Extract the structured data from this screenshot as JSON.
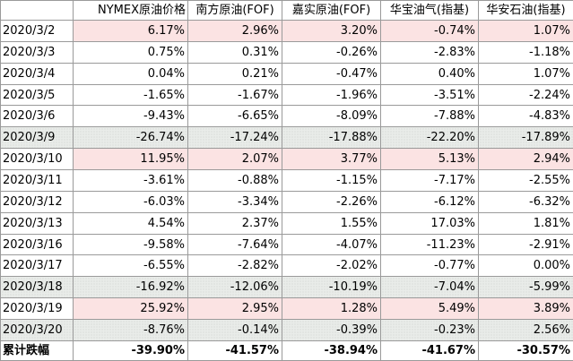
{
  "header": {
    "corner": "",
    "columns": [
      "NYMEX原油价格",
      "南方原油(FOF)",
      "嘉实原油(FOF)",
      "华宝油气(指基)",
      "华安石油(指基)"
    ]
  },
  "rows": [
    {
      "date": "2020/3/2",
      "highlight": "red",
      "values": [
        "6.17%",
        "2.96%",
        "3.20%",
        "-0.74%",
        "1.07%"
      ]
    },
    {
      "date": "2020/3/3",
      "highlight": "none",
      "values": [
        "0.75%",
        "0.31%",
        "-0.26%",
        "-2.83%",
        "-1.18%"
      ]
    },
    {
      "date": "2020/3/4",
      "highlight": "none",
      "values": [
        "0.04%",
        "0.21%",
        "-0.47%",
        "0.40%",
        "1.07%"
      ]
    },
    {
      "date": "2020/3/5",
      "highlight": "none",
      "values": [
        "-1.65%",
        "-1.67%",
        "-1.96%",
        "-3.51%",
        "-2.24%"
      ]
    },
    {
      "date": "2020/3/6",
      "highlight": "none",
      "values": [
        "-9.43%",
        "-6.65%",
        "-8.09%",
        "-7.88%",
        "-4.83%"
      ]
    },
    {
      "date": "2020/3/9",
      "highlight": "gray",
      "values": [
        "-26.74%",
        "-17.24%",
        "-17.88%",
        "-22.20%",
        "-17.89%"
      ]
    },
    {
      "date": "2020/3/10",
      "highlight": "red",
      "values": [
        "11.95%",
        "2.07%",
        "3.77%",
        "5.13%",
        "2.94%"
      ]
    },
    {
      "date": "2020/3/11",
      "highlight": "none",
      "values": [
        "-3.61%",
        "-0.88%",
        "-1.15%",
        "-7.17%",
        "-2.55%"
      ]
    },
    {
      "date": "2020/3/12",
      "highlight": "none",
      "values": [
        "-6.03%",
        "-3.34%",
        "-2.26%",
        "-6.12%",
        "-6.32%"
      ]
    },
    {
      "date": "2020/3/13",
      "highlight": "none",
      "values": [
        "4.54%",
        "2.37%",
        "1.55%",
        "17.03%",
        "1.81%"
      ]
    },
    {
      "date": "2020/3/16",
      "highlight": "none",
      "values": [
        "-9.58%",
        "-7.64%",
        "-4.07%",
        "-11.23%",
        "-2.91%"
      ]
    },
    {
      "date": "2020/3/17",
      "highlight": "none",
      "values": [
        "-6.55%",
        "-2.82%",
        "-2.02%",
        "-0.77%",
        "0.00%"
      ]
    },
    {
      "date": "2020/3/18",
      "highlight": "gray",
      "values": [
        "-16.92%",
        "-12.06%",
        "-10.19%",
        "-7.04%",
        "-5.99%"
      ]
    },
    {
      "date": "2020/3/19",
      "highlight": "red",
      "values": [
        "25.92%",
        "2.95%",
        "1.28%",
        "5.49%",
        "3.89%"
      ]
    },
    {
      "date": "2020/3/20",
      "highlight": "gray",
      "values": [
        "-8.76%",
        "-0.14%",
        "-0.39%",
        "-0.23%",
        "2.56%"
      ]
    }
  ],
  "total": {
    "label": "累计跌幅",
    "values": [
      "-39.90%",
      "-41.57%",
      "-38.94%",
      "-41.67%",
      "-30.57%"
    ]
  },
  "colors": {
    "highlight_red": "#fbe3e3",
    "highlight_gray": "#e9ece9",
    "border": "#9a9a9a"
  }
}
